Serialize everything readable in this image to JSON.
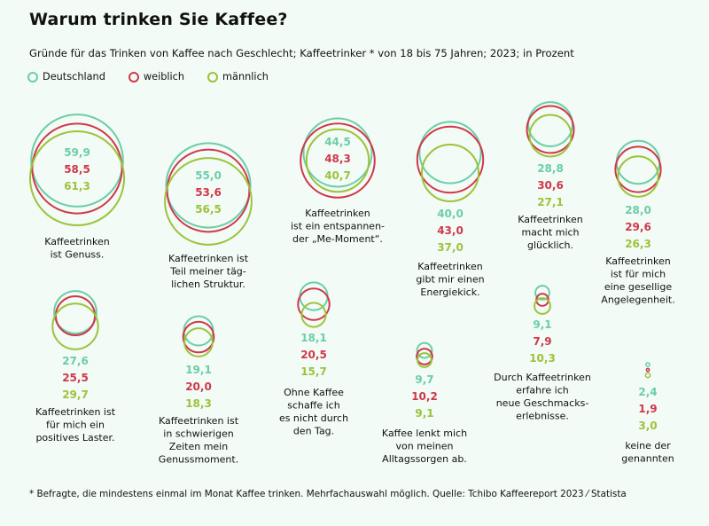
{
  "colors": {
    "Deutschland": "#6ccda8",
    "weiblich": "#d0384a",
    "männlich": "#9cc33a"
  },
  "chart_data": {
    "type": "bubble",
    "title": "Warum trinken Sie Kaffee?",
    "subtitle": "Gründe für das Trinken von Kaffee nach Geschlecht; Kaffeetrinker * von 18 bis 75 Jahren; 2023; in Prozent",
    "legend": [
      "Deutschland",
      "weiblich",
      "männlich"
    ],
    "series_order": [
      "Deutschland",
      "weiblich",
      "männlich"
    ],
    "groups": [
      {
        "label": [
          "Kaffeetrinken",
          "ist Genuss."
        ],
        "values": [
          59.9,
          58.5,
          61.3
        ],
        "display": [
          "59,9",
          "58,5",
          "61,3"
        ]
      },
      {
        "label": [
          "Kaffeetrinken ist",
          "Teil meiner täg-",
          "lichen Struktur."
        ],
        "values": [
          55.0,
          53.6,
          56.5
        ],
        "display": [
          "55,0",
          "53,6",
          "56,5"
        ]
      },
      {
        "label": [
          "Kaffeetrinken",
          "ist ein entspannen-",
          "der „Me-Moment“."
        ],
        "values": [
          44.5,
          48.3,
          40.7
        ],
        "display": [
          "44,5",
          "48,3",
          "40,7"
        ]
      },
      {
        "label": [
          "Kaffeetrinken",
          "gibt mir einen",
          "Energiekick."
        ],
        "values": [
          40.0,
          43.0,
          37.0
        ],
        "display": [
          "40,0",
          "43,0",
          "37,0"
        ]
      },
      {
        "label": [
          "Kaffeetrinken",
          "macht mich",
          "glücklich."
        ],
        "values": [
          28.8,
          30.6,
          27.1
        ],
        "display": [
          "28,8",
          "30,6",
          "27,1"
        ]
      },
      {
        "label": [
          "Kaffeetrinken",
          "ist für mich",
          "eine gesellige",
          "Angelegenheit."
        ],
        "values": [
          28.0,
          29.6,
          26.3
        ],
        "display": [
          "28,0",
          "29,6",
          "26,3"
        ]
      },
      {
        "label": [
          "Kaffeetrinken ist",
          "für mich ein",
          "positives Laster."
        ],
        "values": [
          27.6,
          25.5,
          29.7
        ],
        "display": [
          "27,6",
          "25,5",
          "29,7"
        ]
      },
      {
        "label": [
          "Kaffeetrinken ist",
          "in schwierigen",
          "Zeiten mein",
          "Genussmoment."
        ],
        "values": [
          19.1,
          20.0,
          18.3
        ],
        "display": [
          "19,1",
          "20,0",
          "18,3"
        ]
      },
      {
        "label": [
          "Ohne Kaffee",
          "schaffe ich",
          "es nicht durch",
          "den Tag."
        ],
        "values": [
          18.1,
          20.5,
          15.7
        ],
        "display": [
          "18,1",
          "20,5",
          "15,7"
        ]
      },
      {
        "label": [
          "Kaffee lenkt mich",
          "von meinen",
          "Alltagssorgen ab."
        ],
        "values": [
          9.7,
          10.2,
          9.1
        ],
        "display": [
          "9,7",
          "10,2",
          "9,1"
        ]
      },
      {
        "label": [
          "Durch Kaffeetrinken",
          "erfahre ich",
          "neue Geschmacks-",
          "erlebnisse."
        ],
        "values": [
          9.1,
          7.9,
          10.3
        ],
        "display": [
          "9,1",
          "7,9",
          "10,3"
        ]
      },
      {
        "label": [
          "keine der",
          "genannten"
        ],
        "values": [
          2.4,
          1.9,
          3.0
        ],
        "display": [
          "2,4",
          "1,9",
          "3,0"
        ]
      }
    ],
    "footnote": "* Befragte, die mindestens einmal im Monat Kaffee trinken. Mehrfachauswahl möglich. Quelle: Tchibo Kaffeereport 2023 ⁄ Statista"
  }
}
